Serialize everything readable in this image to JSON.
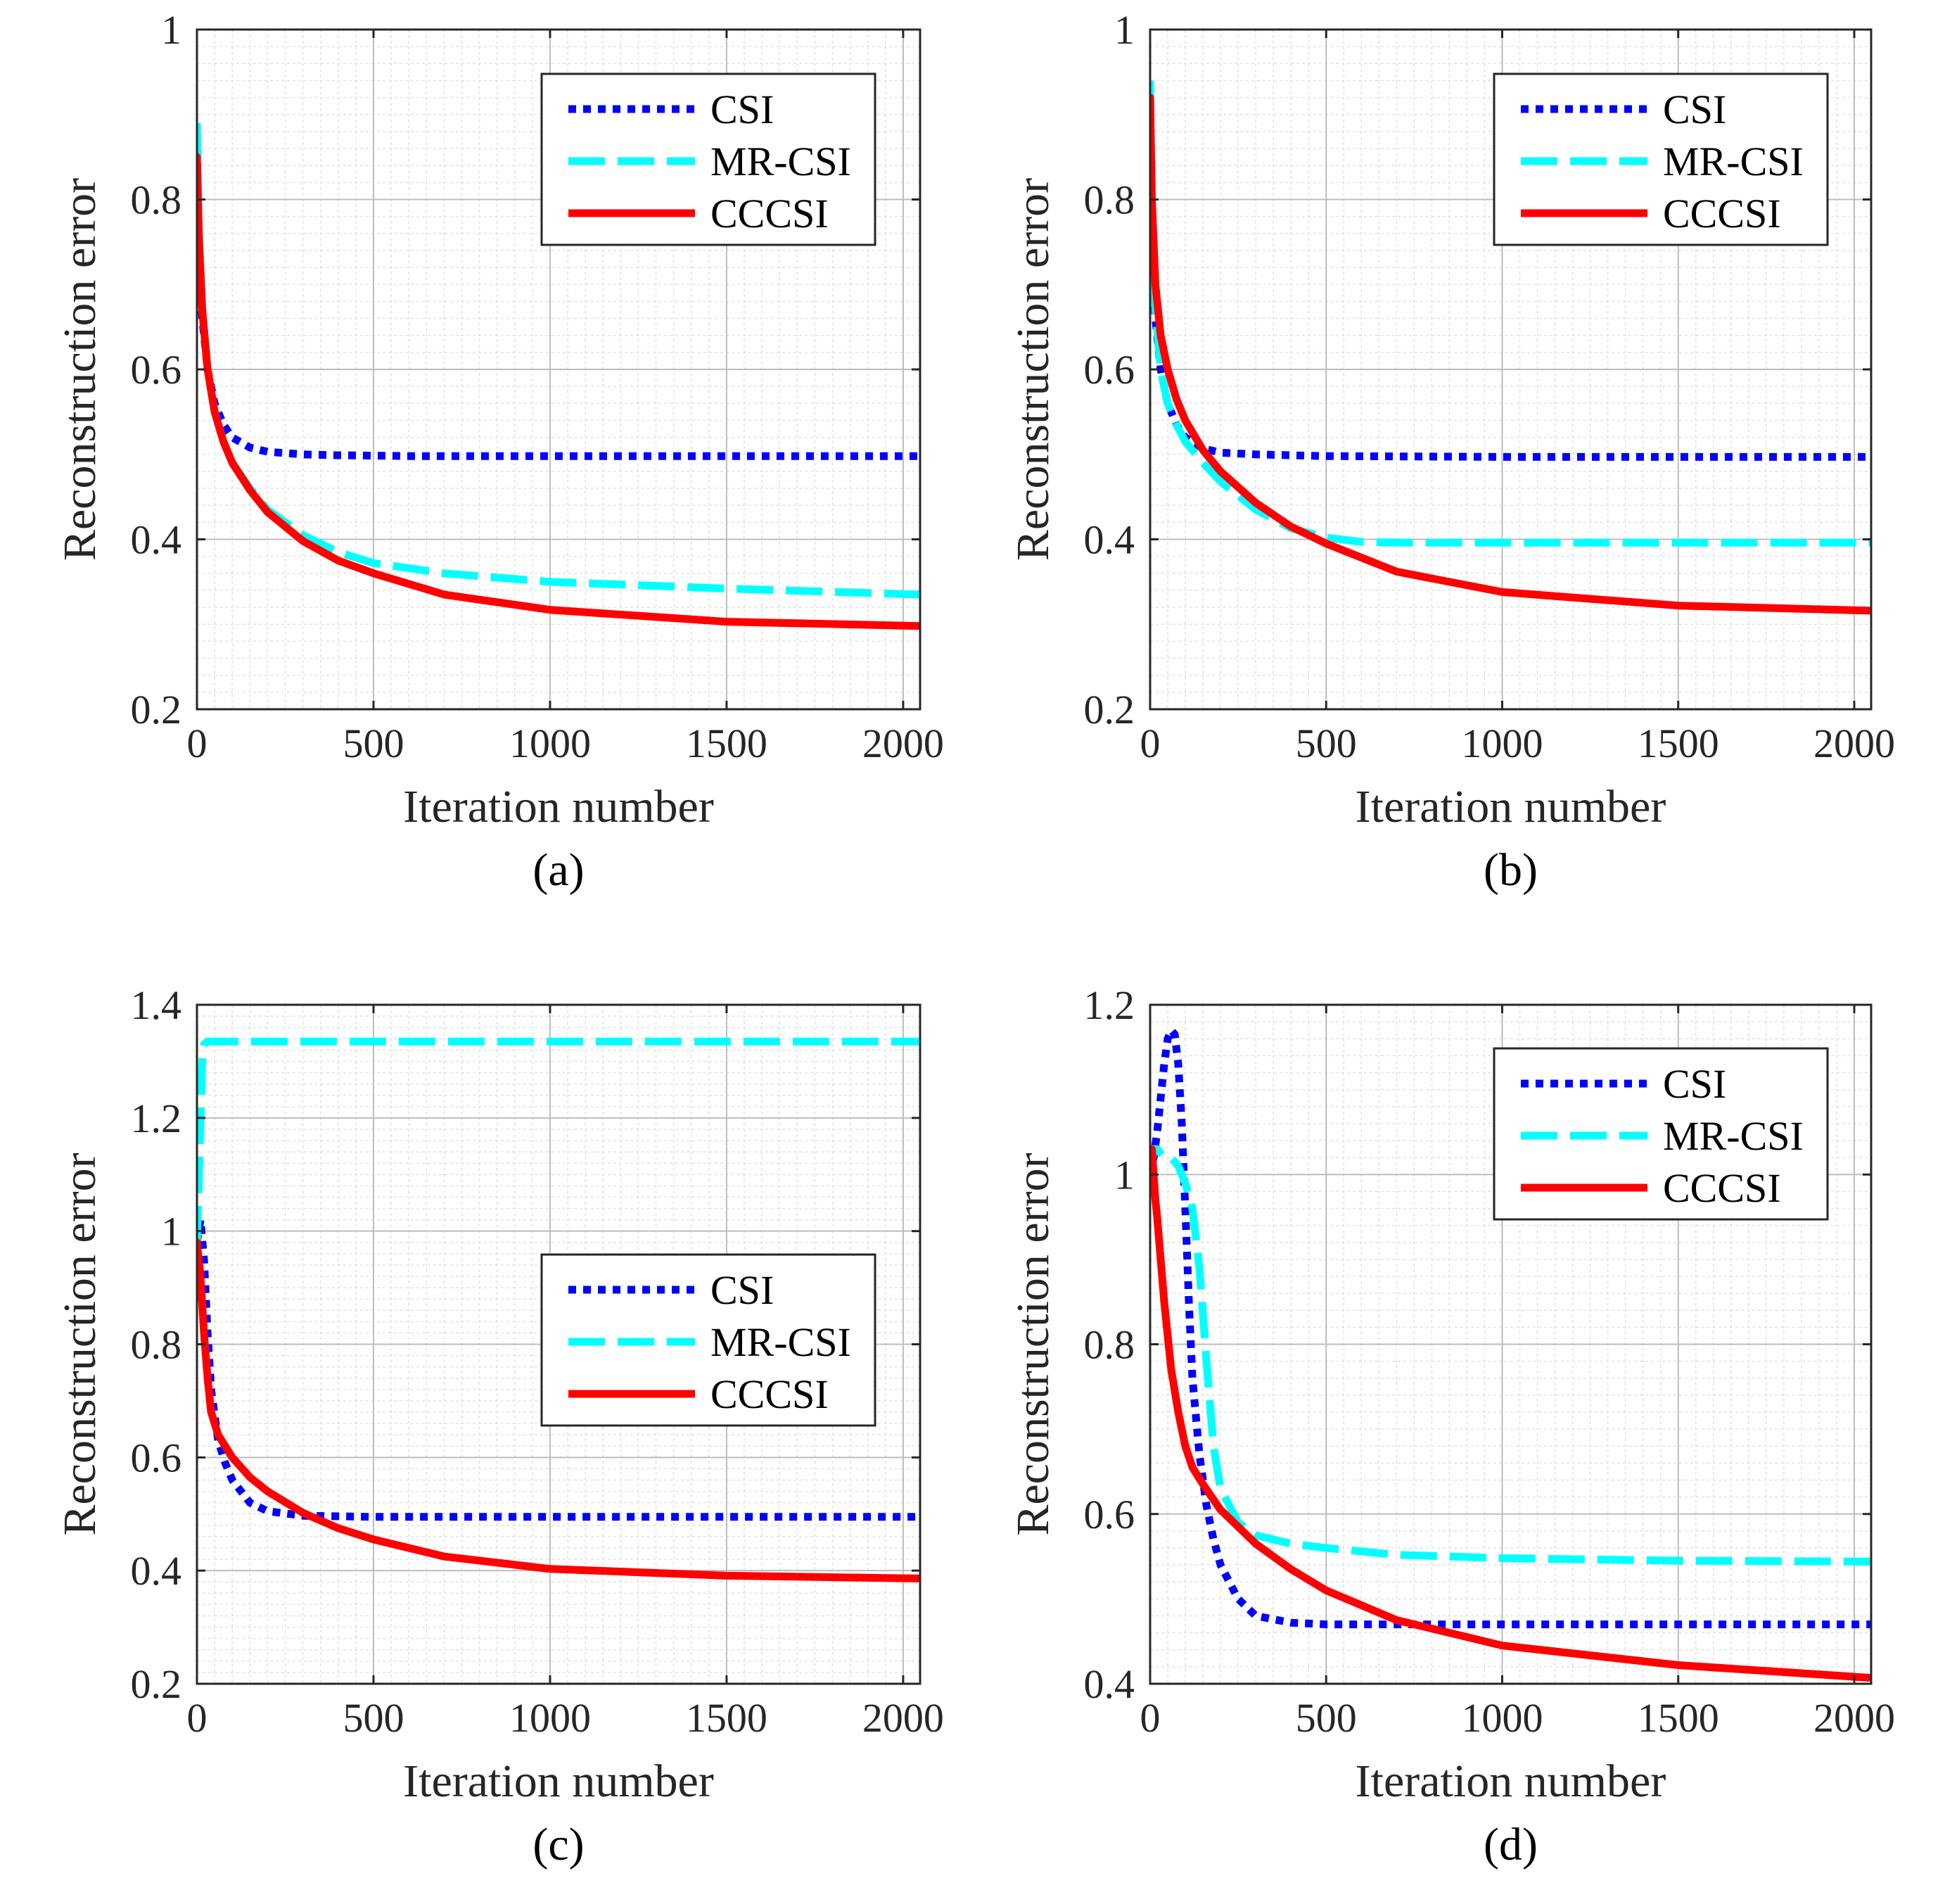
{
  "colors": {
    "CSI": "#0000ff",
    "MR-CSI": "#00ffff",
    "CCCSI": "#ff0000",
    "axis": "#262626",
    "grid_major": "#bdbdbd",
    "grid_minor": "#e2e2e2"
  },
  "chart_data": [
    {
      "panel": "(a)",
      "type": "line",
      "xlabel": "Iteration number",
      "ylabel": "Reconstruction error",
      "xlim": [
        0,
        2048
      ],
      "ylim": [
        0.2,
        1.0
      ],
      "xticks": [
        0,
        500,
        1000,
        1500,
        2000
      ],
      "xtick_labels": [
        "0",
        "500",
        "1000",
        "1500",
        "2000"
      ],
      "yticks": [
        0.2,
        0.4,
        0.6,
        0.8,
        1.0
      ],
      "ytick_labels": [
        "0.2",
        "0.4",
        "0.6",
        "0.8",
        "1"
      ],
      "grid": true,
      "legend_position": "top-right",
      "series": [
        {
          "name": "CSI",
          "style": "dotted",
          "x": [
            0,
            5,
            15,
            30,
            50,
            75,
            100,
            150,
            200,
            300,
            400,
            600,
            1000,
            1500,
            2048
          ],
          "y": [
            0.86,
            0.74,
            0.66,
            0.6,
            0.56,
            0.535,
            0.52,
            0.508,
            0.503,
            0.5,
            0.499,
            0.498,
            0.498,
            0.498,
            0.498
          ]
        },
        {
          "name": "MR-CSI",
          "style": "dashed",
          "x": [
            0,
            5,
            15,
            30,
            50,
            75,
            100,
            150,
            200,
            300,
            400,
            500,
            700,
            1000,
            1500,
            2048
          ],
          "y": [
            0.89,
            0.77,
            0.67,
            0.6,
            0.55,
            0.515,
            0.49,
            0.46,
            0.435,
            0.405,
            0.385,
            0.372,
            0.36,
            0.35,
            0.342,
            0.335
          ]
        },
        {
          "name": "CCCSI",
          "style": "solid",
          "x": [
            0,
            5,
            15,
            30,
            50,
            75,
            100,
            150,
            200,
            300,
            400,
            500,
            700,
            1000,
            1500,
            2048
          ],
          "y": [
            0.85,
            0.76,
            0.67,
            0.6,
            0.55,
            0.515,
            0.49,
            0.458,
            0.432,
            0.398,
            0.375,
            0.36,
            0.335,
            0.317,
            0.303,
            0.298
          ]
        }
      ]
    },
    {
      "panel": "(b)",
      "type": "line",
      "xlabel": "Iteration number",
      "ylabel": "Reconstruction error",
      "xlim": [
        0,
        2048
      ],
      "ylim": [
        0.2,
        1.0
      ],
      "xticks": [
        0,
        500,
        1000,
        1500,
        2000
      ],
      "xtick_labels": [
        "0",
        "500",
        "1000",
        "1500",
        "2000"
      ],
      "yticks": [
        0.2,
        0.4,
        0.6,
        0.8,
        1.0
      ],
      "ytick_labels": [
        "0.2",
        "0.4",
        "0.6",
        "0.8",
        "1"
      ],
      "grid": true,
      "legend_position": "top-right",
      "series": [
        {
          "name": "CSI",
          "style": "dotted",
          "x": [
            0,
            5,
            15,
            30,
            50,
            75,
            100,
            150,
            200,
            300,
            500,
            1000,
            1500,
            2048
          ],
          "y": [
            0.9,
            0.76,
            0.66,
            0.6,
            0.56,
            0.535,
            0.52,
            0.507,
            0.502,
            0.5,
            0.498,
            0.497,
            0.497,
            0.497
          ]
        },
        {
          "name": "MR-CSI",
          "style": "dashed",
          "x": [
            0,
            5,
            15,
            30,
            50,
            75,
            100,
            150,
            200,
            300,
            400,
            500,
            600,
            700,
            1000,
            1500,
            2048
          ],
          "y": [
            0.94,
            0.78,
            0.67,
            0.6,
            0.56,
            0.535,
            0.515,
            0.49,
            0.468,
            0.435,
            0.413,
            0.402,
            0.397,
            0.396,
            0.396,
            0.396,
            0.396
          ]
        },
        {
          "name": "CCCSI",
          "style": "solid",
          "x": [
            0,
            5,
            15,
            30,
            50,
            75,
            100,
            150,
            200,
            300,
            400,
            500,
            700,
            1000,
            1500,
            2048
          ],
          "y": [
            0.92,
            0.8,
            0.7,
            0.64,
            0.6,
            0.565,
            0.54,
            0.505,
            0.48,
            0.443,
            0.415,
            0.395,
            0.362,
            0.338,
            0.322,
            0.316
          ]
        }
      ]
    },
    {
      "panel": "(c)",
      "type": "line",
      "xlabel": "Iteration number",
      "ylabel": "Reconstruction error",
      "xlim": [
        0,
        2048
      ],
      "ylim": [
        0.2,
        1.4
      ],
      "xticks": [
        0,
        500,
        1000,
        1500,
        2000
      ],
      "xtick_labels": [
        "0",
        "500",
        "1000",
        "1500",
        "2000"
      ],
      "yticks": [
        0.2,
        0.4,
        0.6,
        0.8,
        1.0,
        1.2,
        1.4
      ],
      "ytick_labels": [
        "0.2",
        "0.4",
        "0.6",
        "0.8",
        "1",
        "1.2",
        "1.4"
      ],
      "grid": true,
      "legend_position": "middle-right",
      "series": [
        {
          "name": "CSI",
          "style": "dotted",
          "x": [
            0,
            10,
            20,
            30,
            40,
            60,
            80,
            100,
            150,
            200,
            300,
            500,
            1000,
            1500,
            2048
          ],
          "y": [
            0.98,
            1.02,
            0.95,
            0.82,
            0.72,
            0.63,
            0.59,
            0.56,
            0.52,
            0.505,
            0.497,
            0.495,
            0.495,
            0.495,
            0.495
          ]
        },
        {
          "name": "MR-CSI",
          "style": "dashed",
          "x": [
            0,
            8,
            15,
            20,
            30,
            50,
            100,
            500,
            1000,
            1500,
            2048
          ],
          "y": [
            0.98,
            1.15,
            1.3,
            1.33,
            1.335,
            1.335,
            1.335,
            1.335,
            1.335,
            1.335,
            1.335
          ]
        },
        {
          "name": "CCCSI",
          "style": "solid",
          "x": [
            0,
            10,
            20,
            30,
            40,
            60,
            80,
            100,
            150,
            200,
            300,
            400,
            500,
            700,
            1000,
            1500,
            2048
          ],
          "y": [
            0.98,
            0.92,
            0.82,
            0.74,
            0.68,
            0.64,
            0.62,
            0.6,
            0.565,
            0.54,
            0.502,
            0.475,
            0.455,
            0.425,
            0.403,
            0.391,
            0.386
          ]
        }
      ]
    },
    {
      "panel": "(d)",
      "type": "line",
      "xlabel": "Iteration number",
      "ylabel": "Reconstruction error",
      "xlim": [
        0,
        2048
      ],
      "ylim": [
        0.4,
        1.2
      ],
      "xticks": [
        0,
        500,
        1000,
        1500,
        2000
      ],
      "xtick_labels": [
        "0",
        "500",
        "1000",
        "1500",
        "2000"
      ],
      "yticks": [
        0.4,
        0.6,
        0.8,
        1.0,
        1.2
      ],
      "ytick_labels": [
        "0.4",
        "0.6",
        "0.8",
        "1",
        "1.2"
      ],
      "grid": true,
      "legend_position": "top-right",
      "series": [
        {
          "name": "CSI",
          "style": "dotted",
          "x": [
            0,
            10,
            20,
            30,
            40,
            50,
            60,
            70,
            80,
            90,
            100,
            110,
            120,
            140,
            160,
            180,
            200,
            250,
            300,
            400,
            500,
            1000,
            1500,
            2048
          ],
          "y": [
            1.0,
            1.02,
            1.05,
            1.09,
            1.13,
            1.16,
            1.17,
            1.165,
            1.13,
            1.06,
            0.96,
            0.85,
            0.76,
            0.67,
            0.61,
            0.57,
            0.54,
            0.5,
            0.48,
            0.472,
            0.47,
            0.47,
            0.47,
            0.47
          ]
        },
        {
          "name": "MR-CSI",
          "style": "dashed",
          "x": [
            0,
            10,
            20,
            40,
            60,
            80,
            100,
            120,
            140,
            160,
            180,
            200,
            250,
            300,
            400,
            500,
            700,
            1000,
            1500,
            2048
          ],
          "y": [
            1.0,
            1.03,
            1.03,
            1.02,
            1.02,
            1.01,
            0.99,
            0.96,
            0.89,
            0.78,
            0.68,
            0.63,
            0.59,
            0.575,
            0.565,
            0.56,
            0.552,
            0.548,
            0.545,
            0.544
          ]
        },
        {
          "name": "CCCSI",
          "style": "solid",
          "x": [
            0,
            5,
            10,
            15,
            20,
            30,
            40,
            60,
            80,
            100,
            120,
            150,
            200,
            250,
            300,
            400,
            500,
            700,
            1000,
            1500,
            2048
          ],
          "y": [
            1.0,
            1.03,
            1.0,
            0.97,
            0.95,
            0.9,
            0.85,
            0.77,
            0.72,
            0.68,
            0.655,
            0.635,
            0.605,
            0.585,
            0.565,
            0.535,
            0.51,
            0.475,
            0.445,
            0.422,
            0.407
          ]
        }
      ]
    }
  ]
}
